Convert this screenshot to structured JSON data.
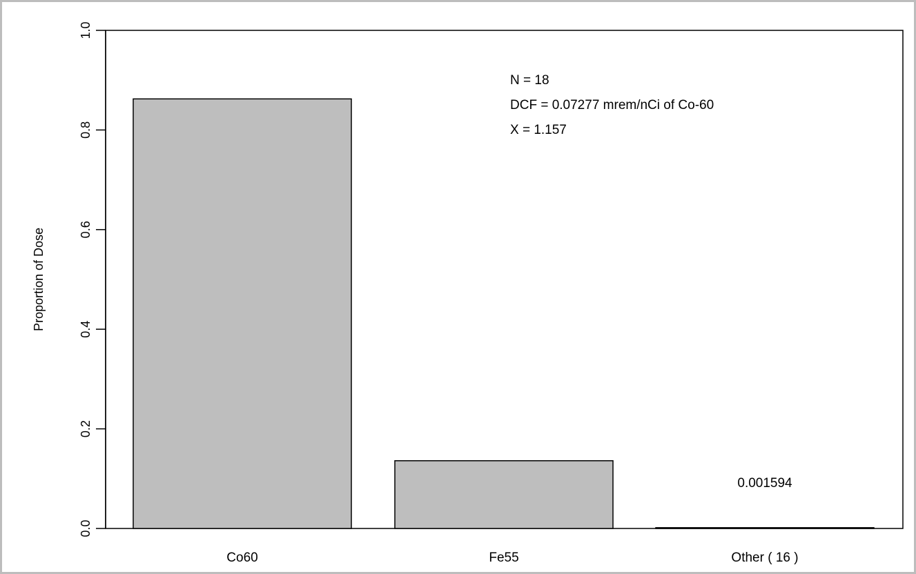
{
  "chart_data": {
    "type": "bar",
    "title": "",
    "xlabel": "",
    "ylabel": "Proportion of Dose",
    "ylim": [
      0,
      1
    ],
    "yticks": [
      0.0,
      0.2,
      0.4,
      0.6,
      0.8,
      1.0
    ],
    "ytick_labels": [
      "0.0",
      "0.2",
      "0.4",
      "0.6",
      "0.8",
      "1.0"
    ],
    "categories": [
      "Co60",
      "Fe55",
      "Other ( 16 )"
    ],
    "values": [
      0.8624,
      0.136,
      0.001594
    ],
    "bar_color": "#bebebe",
    "bar_stroke": "#000000",
    "value_labels": [
      "",
      "",
      "0.001594"
    ],
    "annotations": [
      "N = 18",
      "DCF = 0.07277 mrem/nCi of Co-60",
      "X = 1.157"
    ],
    "grid": false,
    "legend": "none"
  }
}
